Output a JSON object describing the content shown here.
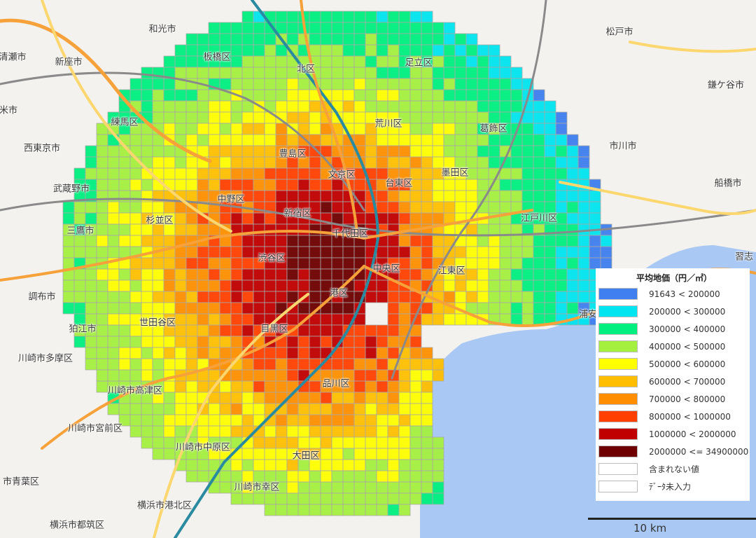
{
  "legend": {
    "title": "平均地価（円／㎡）",
    "items": [
      {
        "label": "91643 < 200000",
        "color": "#3f7fef"
      },
      {
        "label": "200000 < 300000",
        "color": "#00e5ef"
      },
      {
        "label": "300000 < 400000",
        "color": "#00ef7f"
      },
      {
        "label": "400000 < 500000",
        "color": "#a5ef3f"
      },
      {
        "label": "500000 < 600000",
        "color": "#ffff00"
      },
      {
        "label": "600000 < 700000",
        "color": "#ffbf00"
      },
      {
        "label": "700000 < 800000",
        "color": "#ff8f00"
      },
      {
        "label": "800000 < 1000000",
        "color": "#ff3f00"
      },
      {
        "label": "1000000 < 2000000",
        "color": "#c00000"
      },
      {
        "label": "2000000 <= 34900000",
        "color": "#6f0000"
      },
      {
        "label": "含まれない値",
        "color": "#ffffff"
      },
      {
        "label": "ﾃﾞｰﾀ未入力",
        "color": "#ffffff"
      }
    ]
  },
  "scale": {
    "label": "10 km"
  },
  "places": {
    "wards": [
      "板橋区",
      "北区",
      "足立区",
      "練馬区",
      "荒川区",
      "葛飾区",
      "豊島区",
      "文京区",
      "台東区",
      "墨田区",
      "中野区",
      "杉並区",
      "新宿区",
      "千代田区",
      "江戸川区",
      "渋谷区",
      "中央区",
      "江東区",
      "港区",
      "世田谷区",
      "目黒区",
      "品川区",
      "大田区"
    ],
    "cities": [
      "和光市",
      "新座市",
      "清瀬市",
      "米市",
      "西東京市",
      "武蔵野市",
      "三鷹市",
      "調布市",
      "狛江市",
      "川崎市多摩区",
      "川崎市高津区",
      "川崎市宮前区",
      "川崎市中原区",
      "市青葉区",
      "川崎市幸区",
      "横浜市港北区",
      "横浜市都筑区",
      "松戸市",
      "鎌ケ谷市",
      "市川市",
      "船橋市",
      "習志",
      "浦安"
    ]
  }
}
